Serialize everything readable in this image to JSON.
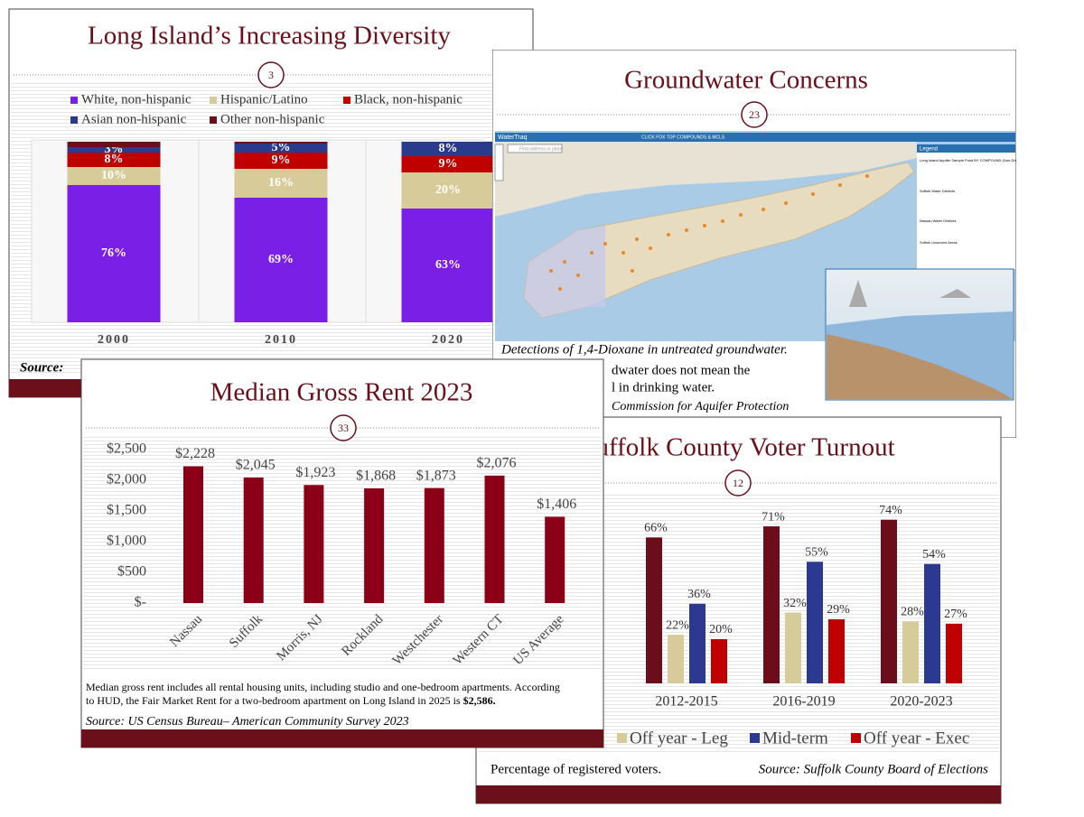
{
  "chart_data": [
    {
      "type": "stacked_bar",
      "title": "Long Island’s Increasing Diversity",
      "slide_number": "3",
      "categories": [
        "2000",
        "2010",
        "2020"
      ],
      "series": [
        {
          "name": "White, non-hispanic",
          "color": "#7a1fe6",
          "values": [
            76,
            69,
            63
          ],
          "value_labels": [
            "76%",
            "69%",
            "63%"
          ]
        },
        {
          "name": "Hispanic/Latino",
          "color": "#d8cb9a",
          "values": [
            10,
            16,
            20
          ],
          "value_labels": [
            "10%",
            "16%",
            "20%"
          ]
        },
        {
          "name": "Black, non-hispanic",
          "color": "#c00000",
          "values": [
            8,
            9,
            9
          ],
          "value_labels": [
            "8%",
            "9%",
            "9%"
          ]
        },
        {
          "name": "Asian non-hispanic",
          "color": "#2a3a8c",
          "values": [
            3,
            5,
            8
          ],
          "value_labels": [
            "3%",
            "5%",
            "8%"
          ]
        },
        {
          "name": "Other non-hispanic",
          "color": "#6b0f1a",
          "values": [
            3,
            1,
            0
          ]
        }
      ],
      "ylim": [
        0,
        100
      ],
      "source": "Source:"
    },
    {
      "type": "bar",
      "title": "Median Gross Rent 2023",
      "slide_number": "33",
      "categories": [
        "Nassau",
        "Suffolk",
        "Morris, NJ",
        "Rockland",
        "Westchester",
        "Western CT",
        "US Average"
      ],
      "values": [
        2228,
        2045,
        1923,
        1868,
        1873,
        2076,
        1406
      ],
      "value_labels": [
        "$2,228",
        "$2,045",
        "$1,923",
        "$1,868",
        "$1,873",
        "$2,076",
        "$1,406"
      ],
      "color": "#8b0016",
      "ylim": [
        0,
        2500
      ],
      "yticks": [
        {
          "value": 0,
          "label": "$-"
        },
        {
          "value": 500,
          "label": "$500"
        },
        {
          "value": 1000,
          "label": "$1,000"
        },
        {
          "value": 1500,
          "label": "$1,500"
        },
        {
          "value": 2000,
          "label": "$2,000"
        },
        {
          "value": 2500,
          "label": "$2,500"
        }
      ],
      "note": [
        "Median gross rent includes all rental housing units, including studio and one-bedroom apartments. According",
        "to HUD, the Fair Market Rent for a two-bedroom apartment on Long Island in 2025 is"
      ],
      "note_bold": "$2,586.",
      "source": "Source: US Census Bureau– American Community Survey 2023"
    },
    {
      "type": "grouped_bar",
      "title": "Suffolk County Voter Turnout",
      "slide_number": "12",
      "categories": [
        "2012-2015",
        "2016-2019",
        "2020-2023"
      ],
      "series": [
        {
          "color": "#6b0d1b",
          "values": [
            66,
            71,
            74
          ],
          "value_labels": [
            "66%",
            "71%",
            "74%"
          ]
        },
        {
          "name": "Off year - Leg",
          "color": "#d8cb9a",
          "values": [
            22,
            32,
            28
          ],
          "value_labels": [
            "22%",
            "32%",
            "28%"
          ]
        },
        {
          "name": "Mid-term",
          "color": "#2b3990",
          "values": [
            36,
            55,
            54
          ],
          "value_labels": [
            "36%",
            "55%",
            "54%"
          ]
        },
        {
          "name": "Off year - Exec",
          "color": "#c00000",
          "values": [
            20,
            29,
            27
          ],
          "value_labels": [
            "20%",
            "29%",
            "27%"
          ]
        }
      ],
      "ylim": [
        0,
        80
      ],
      "note": "Percentage of registered voters.",
      "source": "Source: Suffolk County Board of Elections"
    }
  ],
  "map_slide": {
    "title": "Groundwater Concerns",
    "slide_number": "23",
    "app_name": "WaterTraq",
    "toolbar_text": "CLICK FOX TOP COMPOUNDS & MCLS",
    "search_placeholder": "Find address or place",
    "legend_title": "Legend",
    "legend_items": [
      "Long Island Aquifer Sample Point BY COMPOUND (Non-Drinking) _Query result",
      "Suffolk Water Districts",
      "Nassau Water Districts",
      "Suffolk Unserved Areas"
    ],
    "caption_lines": [
      "Detections of 1,4-Dioxane in untreated groundwater.",
      "dwater does not mean the",
      "l in drinking water.",
      "Commission for Aquifer Protection"
    ]
  }
}
